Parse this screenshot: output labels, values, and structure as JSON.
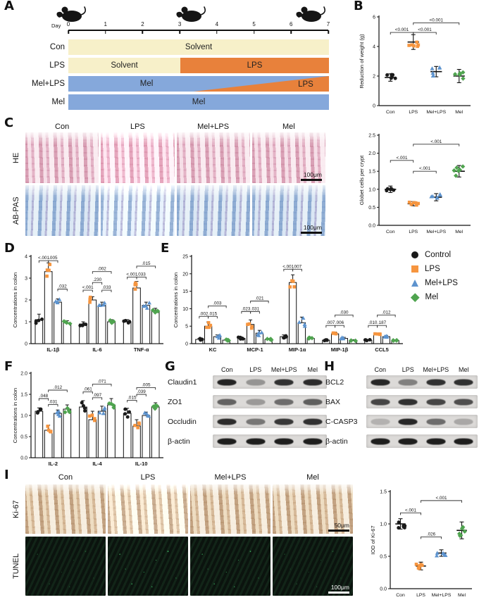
{
  "groups": {
    "labels": [
      "Control",
      "LPS",
      "Mel+LPS",
      "Mel"
    ],
    "colors": [
      "#1a1a1a",
      "#F6953F",
      "#5D93CE",
      "#4FA44F"
    ],
    "markers": [
      "circle",
      "square",
      "triangle",
      "diamond"
    ]
  },
  "legend": {
    "items": [
      "Control",
      "LPS",
      "Mel+LPS",
      "Mel"
    ]
  },
  "panelA": {
    "label": "A",
    "day_label": "Day",
    "days": [
      "0",
      "1",
      "2",
      "3",
      "4",
      "5",
      "6",
      "7"
    ],
    "colors": {
      "solvent": "#F7F0C9",
      "lps": "#E8813B",
      "mel": "#85A8DB"
    },
    "rows": [
      {
        "name": "Con",
        "segs": [
          {
            "text": "Solvent",
            "color": "solvent",
            "width": 100
          }
        ]
      },
      {
        "name": "LPS",
        "segs": [
          {
            "text": "Solvent",
            "color": "solvent",
            "width": 43
          },
          {
            "text": "LPS",
            "color": "lps",
            "width": 57
          }
        ]
      },
      {
        "name": "Mel+LPS",
        "base": {
          "text": "Mel",
          "color": "mel"
        },
        "wedge": {
          "text": "LPS",
          "color": "lps"
        }
      },
      {
        "name": "Mel",
        "segs": [
          {
            "text": "Mel",
            "color": "mel",
            "width": 100
          }
        ]
      }
    ]
  },
  "panelB": {
    "label": "B"
  },
  "panelC": {
    "label": "C",
    "columns": [
      "Con",
      "LPS",
      "Mel+LPS",
      "Mel"
    ],
    "rows": [
      {
        "name": "HE",
        "scale": "100μm",
        "scale_light": false
      },
      {
        "name": "AB-PAS",
        "scale": "100μm",
        "scale_light": false
      }
    ]
  },
  "panelD": {
    "label": "D"
  },
  "panelE": {
    "label": "E"
  },
  "panelF": {
    "label": "F"
  },
  "panelG": {
    "label": "G",
    "lanes": [
      "Con",
      "LPS",
      "Mel+LPS",
      "Mel"
    ],
    "rows": [
      {
        "protein": "Claudin1",
        "bands": [
          0.92,
          0.35,
          0.85,
          0.88
        ]
      },
      {
        "protein": "ZO1",
        "bands": [
          0.6,
          0.32,
          0.55,
          0.62
        ]
      },
      {
        "protein": "Occludin",
        "bands": [
          0.88,
          0.5,
          0.82,
          0.85
        ]
      },
      {
        "protein": "β-actin",
        "bands": [
          0.95,
          0.95,
          0.95,
          0.95
        ]
      }
    ]
  },
  "panelH": {
    "label": "H",
    "lanes": [
      "Con",
      "LPS",
      "Mel+LPS",
      "Mel"
    ],
    "rows": [
      {
        "protein": "BCL2",
        "bands": [
          0.9,
          0.45,
          0.85,
          0.85
        ]
      },
      {
        "protein": "BAX",
        "bands": [
          0.75,
          0.85,
          0.75,
          0.7
        ]
      },
      {
        "protein": "C-CASP3",
        "bands": [
          0.2,
          0.9,
          0.55,
          0.25
        ]
      },
      {
        "protein": "β-actin",
        "bands": [
          0.95,
          0.95,
          0.95,
          0.95
        ]
      }
    ]
  },
  "panelI": {
    "label": "I",
    "columns": [
      "Con",
      "LPS",
      "Mel+LPS",
      "Mel"
    ],
    "rows": [
      {
        "name": "Ki-67",
        "scale": "50μm",
        "scale_light": false
      },
      {
        "name": "TUNEL",
        "scale": "100μm",
        "scale_light": true
      }
    ]
  },
  "chart_data": [
    {
      "id": "weight",
      "type": "scatter",
      "ylabel": "Reduction of weight (g)",
      "ylim": [
        0,
        6
      ],
      "yticks": [
        0,
        2,
        4,
        6
      ],
      "ytick_labels": [
        "0",
        "2",
        "4",
        "6"
      ],
      "categories": [
        "Con",
        "LPS",
        "Mel+LPS",
        "Mel"
      ],
      "color_by": "category",
      "ndots": 6,
      "values": [
        [
          1.9
        ],
        [
          4.3
        ],
        [
          2.3
        ],
        [
          2.0
        ]
      ],
      "errors": [
        [
          0.25
        ],
        [
          0.5
        ],
        [
          0.35
        ],
        [
          0.45
        ]
      ],
      "sig": [
        {
          "a": [
            0,
            0
          ],
          "b": [
            1,
            0
          ],
          "y": 4.95,
          "label": "<0.001"
        },
        {
          "a": [
            1,
            0
          ],
          "b": [
            2,
            0
          ],
          "y": 4.95,
          "label": "<0.001"
        },
        {
          "a": [
            1,
            0
          ],
          "b": [
            3,
            0
          ],
          "y": 5.6,
          "label": "<0.001"
        }
      ],
      "margins": {
        "l": 30,
        "r": 8,
        "t": 14,
        "b": 24
      }
    },
    {
      "id": "goblet",
      "type": "scatter",
      "ylabel": "Globet cells per crypt",
      "ylim": [
        0,
        2.5
      ],
      "yticks": [
        0,
        0.5,
        1,
        1.5,
        2,
        2.5
      ],
      "ytick_labels": [
        "0.0",
        "0.5",
        "1.0",
        "1.5",
        "2.0",
        "2.5"
      ],
      "categories": [
        "Con",
        "LPS",
        "Mel+LPS",
        "Mel"
      ],
      "color_by": "category",
      "ndots": 6,
      "values": [
        [
          1.0
        ],
        [
          0.6
        ],
        [
          0.78
        ],
        [
          1.5
        ]
      ],
      "errors": [
        [
          0.09
        ],
        [
          0.06
        ],
        [
          0.1
        ],
        [
          0.16
        ]
      ],
      "sig": [
        {
          "a": [
            0,
            0
          ],
          "b": [
            1,
            0
          ],
          "y": 1.8,
          "label": "<.001"
        },
        {
          "a": [
            1,
            0
          ],
          "b": [
            2,
            0
          ],
          "y": 1.5,
          "label": "<.001"
        },
        {
          "a": [
            1,
            0
          ],
          "b": [
            3,
            0
          ],
          "y": 2.25,
          "label": "<.001"
        }
      ],
      "margins": {
        "l": 30,
        "r": 8,
        "t": 12,
        "b": 24
      }
    },
    {
      "id": "cytokines_pro",
      "type": "bar",
      "ylabel": "Concentrations in colon",
      "ylim": [
        0,
        4
      ],
      "yticks": [
        0,
        1,
        2,
        3,
        4
      ],
      "ytick_labels": [
        "0",
        "1",
        "2",
        "3",
        "4"
      ],
      "categories": [
        "IL-1β",
        "IL-6",
        "TNF-α"
      ],
      "color_by": "group",
      "cat_bold": true,
      "ndots": 4,
      "values": [
        [
          1.1,
          3.3,
          1.9,
          0.95
        ],
        [
          0.9,
          2.0,
          1.75,
          1.0
        ],
        [
          1.0,
          2.55,
          1.75,
          1.5
        ]
      ],
      "errors": [
        [
          0.25,
          0.4,
          0.15,
          0.1
        ],
        [
          0.1,
          0.15,
          0.15,
          0.1
        ],
        [
          0.1,
          0.3,
          0.15,
          0.12
        ]
      ],
      "sig": [
        {
          "a": [
            0,
            0
          ],
          "b": [
            0,
            1
          ],
          "y": 3.8,
          "label": "<.001"
        },
        {
          "a": [
            0,
            1
          ],
          "b": [
            0,
            2
          ],
          "y": 3.8,
          "label": ".005"
        },
        {
          "a": [
            0,
            2
          ],
          "b": [
            0,
            3
          ],
          "y": 2.5,
          "label": ".032"
        },
        {
          "a": [
            1,
            0
          ],
          "b": [
            1,
            1
          ],
          "y": 2.45,
          "label": "<.001"
        },
        {
          "a": [
            1,
            1
          ],
          "b": [
            1,
            2
          ],
          "y": 2.8,
          "label": ".230"
        },
        {
          "a": [
            1,
            2
          ],
          "b": [
            1,
            3
          ],
          "y": 2.45,
          "label": ".033"
        },
        {
          "a": [
            1,
            1
          ],
          "b": [
            1,
            3
          ],
          "y": 3.3,
          "label": ".002"
        },
        {
          "a": [
            2,
            0
          ],
          "b": [
            2,
            1
          ],
          "y": 3.05,
          "label": "<.001"
        },
        {
          "a": [
            2,
            1
          ],
          "b": [
            2,
            2
          ],
          "y": 3.05,
          "label": ".033"
        },
        {
          "a": [
            2,
            1
          ],
          "b": [
            2,
            3
          ],
          "y": 3.55,
          "label": ".015"
        }
      ],
      "margins": {
        "l": 28,
        "r": 2,
        "t": 10,
        "b": 20
      }
    },
    {
      "id": "chemokines",
      "type": "bar",
      "ylabel": "Concentrations in colon",
      "ylim": [
        0,
        25
      ],
      "yticks": [
        0,
        5,
        10,
        15,
        20,
        25
      ],
      "ytick_labels": [
        "0",
        "5",
        "10",
        "15",
        "20",
        "25"
      ],
      "categories": [
        "KC",
        "MCP-1",
        "MIP-1α",
        "MIP-1β",
        "CCL5"
      ],
      "color_by": "group",
      "cat_bold": true,
      "ndots": 4,
      "values": [
        [
          1.2,
          5.0,
          2.0,
          1.0
        ],
        [
          1.5,
          5.5,
          3.0,
          1.2
        ],
        [
          2.0,
          17.5,
          6.0,
          1.5
        ],
        [
          1.0,
          2.8,
          1.5,
          0.9
        ],
        [
          1.0,
          2.6,
          2.0,
          0.9
        ]
      ],
      "errors": [
        [
          0.3,
          1.2,
          0.5,
          0.2
        ],
        [
          0.4,
          1.3,
          0.8,
          0.3
        ],
        [
          0.5,
          2.2,
          1.6,
          0.4
        ],
        [
          0.2,
          0.5,
          0.3,
          0.2
        ],
        [
          0.2,
          0.4,
          0.3,
          0.2
        ]
      ],
      "sig": [
        {
          "a": [
            0,
            0
          ],
          "b": [
            0,
            1
          ],
          "y": 7.8,
          "label": ".002"
        },
        {
          "a": [
            0,
            1
          ],
          "b": [
            0,
            2
          ],
          "y": 7.8,
          "label": ".015"
        },
        {
          "a": [
            0,
            1
          ],
          "b": [
            0,
            3
          ],
          "y": 10.8,
          "label": ".003"
        },
        {
          "a": [
            1,
            0
          ],
          "b": [
            1,
            1
          ],
          "y": 9.2,
          "label": ".023"
        },
        {
          "a": [
            1,
            1
          ],
          "b": [
            1,
            2
          ],
          "y": 9.2,
          "label": ".031"
        },
        {
          "a": [
            1,
            1
          ],
          "b": [
            1,
            3
          ],
          "y": 12.2,
          "label": ".021"
        },
        {
          "a": [
            2,
            0
          ],
          "b": [
            2,
            1
          ],
          "y": 21.3,
          "label": "<.001"
        },
        {
          "a": [
            2,
            1
          ],
          "b": [
            2,
            2
          ],
          "y": 21.3,
          "label": ".007"
        },
        {
          "a": [
            3,
            0
          ],
          "b": [
            3,
            1
          ],
          "y": 5.2,
          "label": ".007"
        },
        {
          "a": [
            3,
            1
          ],
          "b": [
            3,
            2
          ],
          "y": 5.2,
          "label": ".006"
        },
        {
          "a": [
            3,
            1
          ],
          "b": [
            3,
            3
          ],
          "y": 8.2,
          "label": ".030"
        },
        {
          "a": [
            4,
            0
          ],
          "b": [
            4,
            1
          ],
          "y": 5.2,
          "label": ".010"
        },
        {
          "a": [
            4,
            1
          ],
          "b": [
            4,
            2
          ],
          "y": 5.2,
          "label": ".187"
        },
        {
          "a": [
            4,
            1
          ],
          "b": [
            4,
            3
          ],
          "y": 8.2,
          "label": ".012"
        }
      ],
      "margins": {
        "l": 28,
        "r": 2,
        "t": 10,
        "b": 20
      }
    },
    {
      "id": "cytokines_anti",
      "type": "bar",
      "ylabel": "Concentrations in colon",
      "ylim": [
        0,
        2
      ],
      "yticks": [
        0,
        0.5,
        1,
        1.5,
        2
      ],
      "ytick_labels": [
        "0.0",
        "0.5",
        "1.0",
        "1.5",
        "2.0"
      ],
      "categories": [
        "IL-2",
        "IL-4",
        "IL-10"
      ],
      "color_by": "group",
      "cat_bold": true,
      "ndots": 4,
      "values": [
        [
          1.1,
          0.65,
          1.05,
          1.15
        ],
        [
          1.2,
          0.9,
          1.1,
          1.25
        ],
        [
          1.05,
          0.75,
          1.0,
          1.2
        ]
      ],
      "errors": [
        [
          0.08,
          0.12,
          0.08,
          0.1
        ],
        [
          0.15,
          0.2,
          0.12,
          0.15
        ],
        [
          0.12,
          0.15,
          0.08,
          0.1
        ]
      ],
      "sig": [
        {
          "a": [
            0,
            0
          ],
          "b": [
            0,
            1
          ],
          "y": 1.4,
          "label": ".048"
        },
        {
          "a": [
            0,
            1
          ],
          "b": [
            0,
            2
          ],
          "y": 1.26,
          "label": ".031"
        },
        {
          "a": [
            0,
            1
          ],
          "b": [
            0,
            3
          ],
          "y": 1.6,
          "label": ".012"
        },
        {
          "a": [
            1,
            0
          ],
          "b": [
            1,
            1
          ],
          "y": 1.56,
          "label": ".061"
        },
        {
          "a": [
            1,
            1
          ],
          "b": [
            1,
            2
          ],
          "y": 1.42,
          "label": ".097"
        },
        {
          "a": [
            1,
            1
          ],
          "b": [
            1,
            3
          ],
          "y": 1.74,
          "label": ".071"
        },
        {
          "a": [
            2,
            0
          ],
          "b": [
            2,
            1
          ],
          "y": 1.36,
          "label": ".015"
        },
        {
          "a": [
            2,
            1
          ],
          "b": [
            2,
            2
          ],
          "y": 1.5,
          "label": ".039"
        },
        {
          "a": [
            2,
            1
          ],
          "b": [
            2,
            3
          ],
          "y": 1.66,
          "label": ".005"
        }
      ],
      "margins": {
        "l": 28,
        "r": 2,
        "t": 10,
        "b": 20
      }
    },
    {
      "id": "ki67",
      "type": "scatter",
      "ylabel": "IOD of Ki-67",
      "ylim": [
        0,
        1.5
      ],
      "yticks": [
        0,
        0.5,
        1,
        1.5
      ],
      "ytick_labels": [
        "0.0",
        "0.5",
        "1.0",
        "1.5"
      ],
      "categories": [
        "Con",
        "LPS",
        "Mel+LPS",
        "Mel"
      ],
      "color_by": "category",
      "ndots": 6,
      "values": [
        [
          1.0
        ],
        [
          0.35
        ],
        [
          0.55
        ],
        [
          0.9
        ]
      ],
      "errors": [
        [
          0.08
        ],
        [
          0.06
        ],
        [
          0.05
        ],
        [
          0.13
        ]
      ],
      "sig": [
        {
          "a": [
            0,
            0
          ],
          "b": [
            1,
            0
          ],
          "y": 1.17,
          "label": "<.001"
        },
        {
          "a": [
            1,
            0
          ],
          "b": [
            2,
            0
          ],
          "y": 0.8,
          "label": ".026"
        },
        {
          "a": [
            1,
            0
          ],
          "b": [
            3,
            0
          ],
          "y": 1.36,
          "label": "<.001"
        }
      ],
      "margins": {
        "l": 30,
        "r": 8,
        "t": 12,
        "b": 22
      }
    }
  ]
}
